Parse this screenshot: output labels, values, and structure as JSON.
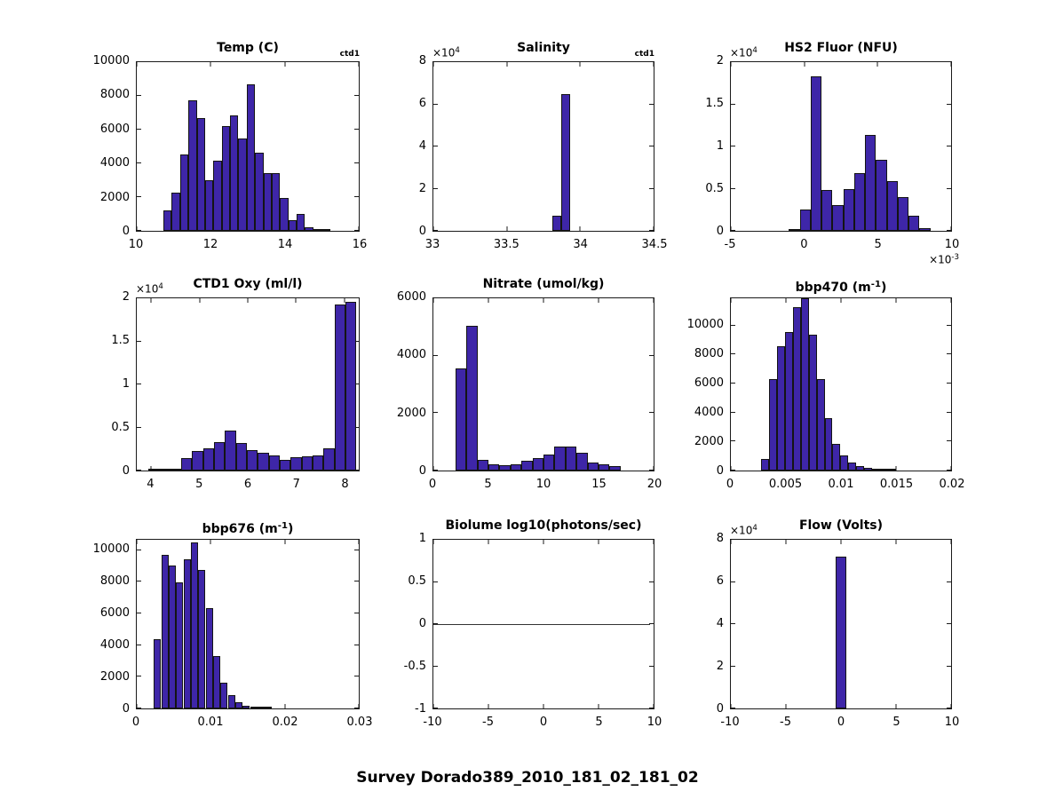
{
  "figure": {
    "title": "Survey Dorado389_2010_181_02_181_02",
    "background": "#ffffff",
    "bar_fill": "#3E26A8",
    "bar_edge": "#141414",
    "axis_color": "#1a1a1a",
    "text_color": "#000000"
  },
  "chart_data": [
    {
      "type": "bar",
      "title_parts": [
        {
          "t": "Temp (C)"
        }
      ],
      "corner_label": "ctd1",
      "xlim": [
        10,
        16
      ],
      "ylim": [
        0,
        10000
      ],
      "xticks": [
        {
          "v": 10,
          "l": "10"
        },
        {
          "v": 12,
          "l": "12"
        },
        {
          "v": 14,
          "l": "14"
        },
        {
          "v": 16,
          "l": "16"
        }
      ],
      "yticks": [
        {
          "v": 0,
          "l": "0"
        },
        {
          "v": 2000,
          "l": "2000"
        },
        {
          "v": 4000,
          "l": "4000"
        },
        {
          "v": 6000,
          "l": "6000"
        },
        {
          "v": 8000,
          "l": "8000"
        },
        {
          "v": 10000,
          "l": "10000"
        }
      ],
      "y_exp": null,
      "x_exp": null,
      "bins": {
        "start": 10.72,
        "width": 0.225
      },
      "values": [
        1200,
        2250,
        4550,
        7750,
        6700,
        3000,
        4150,
        6200,
        6850,
        5450,
        8700,
        4650,
        3400,
        3400,
        1950,
        650,
        1000,
        230,
        50,
        20
      ]
    },
    {
      "type": "bar",
      "title_parts": [
        {
          "t": "Salinity"
        }
      ],
      "corner_label": "ctd1",
      "xlim": [
        33,
        34.5
      ],
      "ylim": [
        0,
        80000
      ],
      "xticks": [
        {
          "v": 33,
          "l": "33"
        },
        {
          "v": 33.5,
          "l": "33.5"
        },
        {
          "v": 34,
          "l": "34"
        },
        {
          "v": 34.5,
          "l": "34.5"
        }
      ],
      "yticks": [
        {
          "v": 0,
          "l": "0"
        },
        {
          "v": 20000,
          "l": "2"
        },
        {
          "v": 40000,
          "l": "4"
        },
        {
          "v": 60000,
          "l": "6"
        },
        {
          "v": 80000,
          "l": "8"
        }
      ],
      "y_exp": {
        "base": "×10",
        "sup": "4"
      },
      "x_exp": null,
      "bins": {
        "start": 33.81,
        "width": 0.06
      },
      "values": [
        7000,
        65000
      ]
    },
    {
      "type": "bar",
      "title_parts": [
        {
          "t": "HS2 Fluor (NFU)"
        }
      ],
      "corner_label": null,
      "xlim": [
        -5,
        10
      ],
      "ylim": [
        0,
        20000
      ],
      "xticks": [
        {
          "v": -5,
          "l": "-5"
        },
        {
          "v": 0,
          "l": "0"
        },
        {
          "v": 5,
          "l": "5"
        },
        {
          "v": 10,
          "l": "10"
        }
      ],
      "yticks": [
        {
          "v": 0,
          "l": "0"
        },
        {
          "v": 5000,
          "l": "0.5"
        },
        {
          "v": 10000,
          "l": "1"
        },
        {
          "v": 15000,
          "l": "1.5"
        },
        {
          "v": 20000,
          "l": "2"
        }
      ],
      "y_exp": {
        "base": "×10",
        "sup": "4"
      },
      "x_exp": {
        "base": "×10",
        "sup": "-3"
      },
      "bins": {
        "start": -1.04,
        "width": 0.74
      },
      "values": [
        150,
        2500,
        18300,
        4800,
        3050,
        5000,
        6830,
        11400,
        8400,
        5900,
        4000,
        1800,
        350
      ]
    },
    {
      "type": "bar",
      "title_parts": [
        {
          "t": "CTD1 Oxy (ml/l)"
        }
      ],
      "corner_label": null,
      "xlim": [
        3.7,
        8.3
      ],
      "ylim": [
        0,
        20000
      ],
      "xticks": [
        {
          "v": 4,
          "l": "4"
        },
        {
          "v": 5,
          "l": "5"
        },
        {
          "v": 6,
          "l": "6"
        },
        {
          "v": 7,
          "l": "7"
        },
        {
          "v": 8,
          "l": "8"
        }
      ],
      "yticks": [
        {
          "v": 0,
          "l": "0"
        },
        {
          "v": 5000,
          "l": "0.5"
        },
        {
          "v": 10000,
          "l": "1"
        },
        {
          "v": 15000,
          "l": "1.5"
        },
        {
          "v": 20000,
          "l": "2"
        }
      ],
      "y_exp": {
        "base": "×10",
        "sup": "4"
      },
      "x_exp": null,
      "bins": {
        "start": 3.94,
        "width": 0.227
      },
      "values": [
        30,
        30,
        40,
        1450,
        2250,
        2550,
        3300,
        4600,
        3150,
        2350,
        2100,
        1750,
        1200,
        1550,
        1650,
        1800,
        2550,
        19300,
        19600
      ]
    },
    {
      "type": "bar",
      "title_parts": [
        {
          "t": "Nitrate (umol/kg)"
        }
      ],
      "corner_label": null,
      "xlim": [
        0,
        20
      ],
      "ylim": [
        0,
        6000
      ],
      "xticks": [
        {
          "v": 0,
          "l": "0"
        },
        {
          "v": 5,
          "l": "5"
        },
        {
          "v": 10,
          "l": "10"
        },
        {
          "v": 15,
          "l": "15"
        },
        {
          "v": 20,
          "l": "20"
        }
      ],
      "yticks": [
        {
          "v": 0,
          "l": "0"
        },
        {
          "v": 2000,
          "l": "2000"
        },
        {
          "v": 4000,
          "l": "4000"
        },
        {
          "v": 6000,
          "l": "6000"
        }
      ],
      "y_exp": null,
      "x_exp": null,
      "bins": {
        "start": 2,
        "width": 1
      },
      "values": [
        3550,
        5050,
        380,
        220,
        180,
        220,
        350,
        420,
        560,
        850,
        850,
        620,
        270,
        220,
        160
      ]
    },
    {
      "type": "bar",
      "title_parts": [
        {
          "t": "bbp470 (m"
        },
        {
          "t": "-1",
          "sup": true
        },
        {
          "t": ")"
        }
      ],
      "corner_label": null,
      "xlim": [
        0,
        0.02
      ],
      "ylim": [
        0,
        11875
      ],
      "xticks": [
        {
          "v": 0,
          "l": "0"
        },
        {
          "v": 0.005,
          "l": "0.005"
        },
        {
          "v": 0.01,
          "l": "0.01"
        },
        {
          "v": 0.015,
          "l": "0.015"
        },
        {
          "v": 0.02,
          "l": "0.02"
        }
      ],
      "yticks": [
        {
          "v": 0,
          "l": "0"
        },
        {
          "v": 2000,
          "l": "2000"
        },
        {
          "v": 4000,
          "l": "4000"
        },
        {
          "v": 6000,
          "l": "6000"
        },
        {
          "v": 8000,
          "l": "8000"
        },
        {
          "v": 10000,
          "l": "10000"
        }
      ],
      "y_exp": null,
      "x_exp": null,
      "bins": {
        "start": 0.00275,
        "width": 0.00072
      },
      "values": [
        800,
        6330,
        8540,
        9580,
        11290,
        11850,
        9375,
        6330,
        3625,
        1810,
        1060,
        540,
        310,
        165,
        100,
        60,
        40
      ]
    },
    {
      "type": "bar",
      "title_parts": [
        {
          "t": "bbp676 (m"
        },
        {
          "t": "-1",
          "sup": true
        },
        {
          "t": ")"
        }
      ],
      "corner_label": null,
      "xlim": [
        0,
        0.03
      ],
      "ylim": [
        0,
        10650
      ],
      "xticks": [
        {
          "v": 0,
          "l": "0"
        },
        {
          "v": 0.01,
          "l": "0.01"
        },
        {
          "v": 0.02,
          "l": "0.02"
        },
        {
          "v": 0.03,
          "l": "0.03"
        }
      ],
      "yticks": [
        {
          "v": 0,
          "l": "0"
        },
        {
          "v": 2000,
          "l": "2000"
        },
        {
          "v": 4000,
          "l": "4000"
        },
        {
          "v": 6000,
          "l": "6000"
        },
        {
          "v": 8000,
          "l": "8000"
        },
        {
          "v": 10000,
          "l": "10000"
        }
      ],
      "y_exp": null,
      "x_exp": null,
      "bins": {
        "start": 0.0023,
        "width": 0.001
      },
      "values": [
        4400,
        9700,
        9050,
        7950,
        9400,
        10500,
        8750,
        6350,
        3300,
        1650,
        850,
        370,
        185,
        75,
        40,
        20
      ]
    },
    {
      "type": "line",
      "title_parts": [
        {
          "t": "Biolume log10(photons/sec)"
        }
      ],
      "corner_label": null,
      "xlim": [
        -10,
        10
      ],
      "ylim": [
        -1,
        1
      ],
      "xticks": [
        {
          "v": -10,
          "l": "-10"
        },
        {
          "v": -5,
          "l": "-5"
        },
        {
          "v": 0,
          "l": "0"
        },
        {
          "v": 5,
          "l": "5"
        },
        {
          "v": 10,
          "l": "10"
        }
      ],
      "yticks": [
        {
          "v": -1,
          "l": "-1"
        },
        {
          "v": -0.5,
          "l": "-0.5"
        },
        {
          "v": 0,
          "l": "0"
        },
        {
          "v": 0.5,
          "l": "0.5"
        },
        {
          "v": 1,
          "l": "1"
        }
      ],
      "y_exp": null,
      "x_exp": null,
      "line_y": 0,
      "line_x": [
        -10,
        9.7
      ]
    },
    {
      "type": "bar",
      "title_parts": [
        {
          "t": "Flow (Volts)"
        }
      ],
      "corner_label": null,
      "xlim": [
        -10,
        10
      ],
      "ylim": [
        0,
        80000
      ],
      "xticks": [
        {
          "v": -10,
          "l": "-10"
        },
        {
          "v": -5,
          "l": "-5"
        },
        {
          "v": 0,
          "l": "0"
        },
        {
          "v": 5,
          "l": "5"
        },
        {
          "v": 10,
          "l": "10"
        }
      ],
      "yticks": [
        {
          "v": 0,
          "l": "0"
        },
        {
          "v": 20000,
          "l": "2"
        },
        {
          "v": 40000,
          "l": "4"
        },
        {
          "v": 60000,
          "l": "6"
        },
        {
          "v": 80000,
          "l": "8"
        }
      ],
      "y_exp": {
        "base": "×10",
        "sup": "4"
      },
      "x_exp": null,
      "bins": {
        "start": -0.5,
        "width": 1
      },
      "values": [
        72000
      ]
    }
  ]
}
